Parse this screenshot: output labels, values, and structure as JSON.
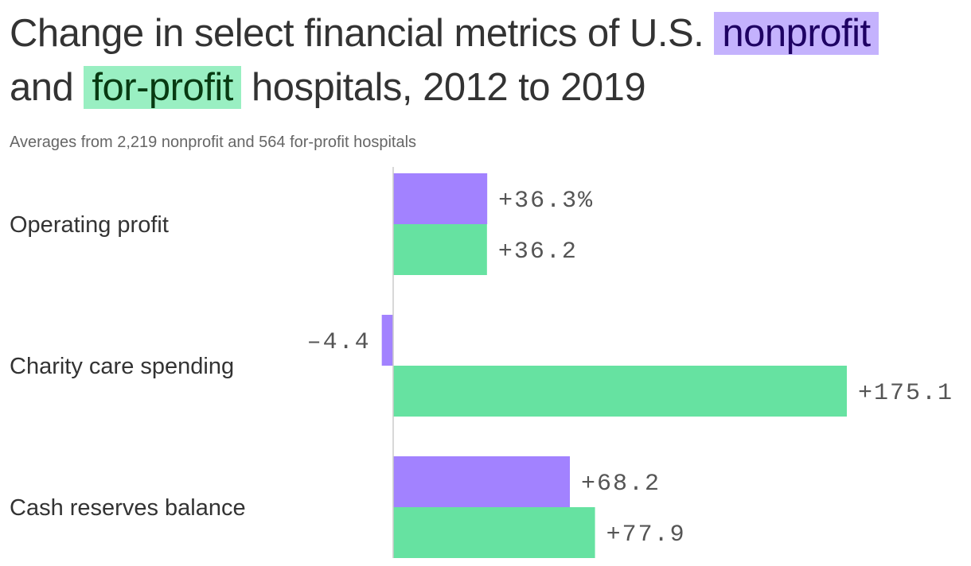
{
  "title": {
    "part1": "Change in select financial metrics of U.S.",
    "nonprofit": "nonprofit",
    "part2": "and",
    "forprofit": "for-profit",
    "part3": "hospitals, 2012 to 2019"
  },
  "subtitle": "Averages from 2,219 nonprofit and 564 for-profit hospitals",
  "colors": {
    "nonprofit": "#a282ff",
    "forprofit": "#66e2a1",
    "axis": "#cccccc"
  },
  "chart_data": {
    "type": "bar",
    "orientation": "horizontal",
    "unit": "%",
    "categories": [
      "Operating profit",
      "Charity care spending",
      "Cash reserves balance"
    ],
    "series": [
      {
        "name": "nonprofit",
        "values": [
          36.3,
          -4.4,
          68.2
        ],
        "labels": [
          "+36.3%",
          "–4.4",
          "+68.2"
        ]
      },
      {
        "name": "for-profit",
        "values": [
          36.2,
          175.1,
          77.9
        ],
        "labels": [
          "+36.2",
          "+175.1",
          "+77.9"
        ]
      }
    ],
    "xlim": [
      -4.4,
      175.1
    ],
    "grid": false,
    "legend": "title"
  }
}
